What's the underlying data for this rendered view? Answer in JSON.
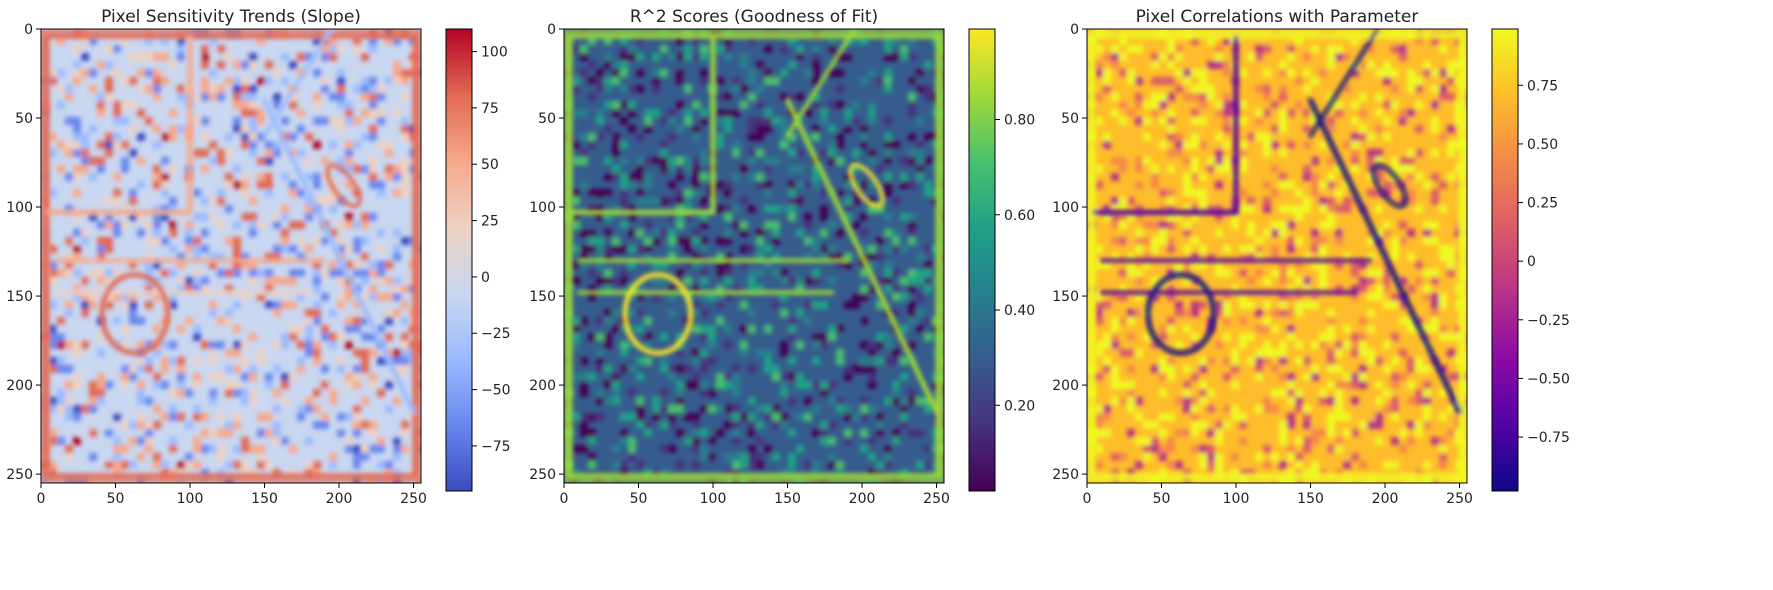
{
  "chart_data": [
    {
      "type": "heatmap",
      "title": "Pixel Sensitivity Trends (Slope)",
      "colormap": "coolwarm",
      "xlim": [
        0,
        255
      ],
      "ylim": [
        255,
        0
      ],
      "xticks": [
        0,
        50,
        100,
        150,
        200,
        250
      ],
      "yticks": [
        0,
        50,
        100,
        150,
        200,
        250
      ],
      "colorbar": {
        "min": -95,
        "max": 110,
        "ticks": [
          -75,
          -50,
          -25,
          0,
          25,
          50,
          75,
          100
        ]
      },
      "features": {
        "frame_value": 80,
        "background_value": 5,
        "rect_lines": [
          {
            "x": [
              5,
              100
            ],
            "y": 103,
            "v": 50
          },
          {
            "x": 100,
            "y": [
              5,
              103
            ],
            "v": 45
          }
        ],
        "ring": {
          "cx": 63,
          "cy": 160,
          "r": 22,
          "v": 70
        },
        "diagonal": {
          "from": [
            150,
            40
          ],
          "to": [
            250,
            215
          ],
          "v": -45
        },
        "hlines": [
          {
            "x": [
              10,
              190
            ],
            "y": 130,
            "v": 45
          },
          {
            "x": [
              10,
              180
            ],
            "y": 148,
            "v": 35
          }
        ]
      }
    },
    {
      "type": "heatmap",
      "title": "R^2 Scores (Goodness of Fit)",
      "colormap": "viridis",
      "xlim": [
        0,
        255
      ],
      "ylim": [
        255,
        0
      ],
      "xticks": [
        0,
        50,
        100,
        150,
        200,
        250
      ],
      "yticks": [
        0,
        50,
        100,
        150,
        200,
        250
      ],
      "colorbar": {
        "min": 0.02,
        "max": 0.99,
        "ticks": [
          0.2,
          0.4,
          0.6,
          0.8
        ]
      },
      "features": {
        "frame_value": 0.9,
        "background_value": 0.3,
        "rect_lines": [
          {
            "x": [
              5,
              100
            ],
            "y": 103,
            "v": 0.9
          },
          {
            "x": 100,
            "y": [
              5,
              103
            ],
            "v": 0.9
          }
        ],
        "ring": {
          "cx": 63,
          "cy": 160,
          "r": 22,
          "v": 0.95
        },
        "diagonal": {
          "from": [
            150,
            40
          ],
          "to": [
            250,
            215
          ],
          "v": 0.9
        },
        "hlines": [
          {
            "x": [
              10,
              190
            ],
            "y": 130,
            "v": 0.9
          },
          {
            "x": [
              10,
              180
            ],
            "y": 148,
            "v": 0.85
          }
        ]
      }
    },
    {
      "type": "heatmap",
      "title": "Pixel Correlations with Parameter",
      "colormap": "plasma",
      "xlim": [
        0,
        255
      ],
      "ylim": [
        255,
        0
      ],
      "xticks": [
        0,
        50,
        100,
        150,
        200,
        250
      ],
      "yticks": [
        0,
        50,
        100,
        150,
        200,
        250
      ],
      "colorbar": {
        "min": -0.98,
        "max": 0.99,
        "ticks": [
          -0.75,
          -0.5,
          -0.25,
          0.0,
          0.25,
          0.5,
          0.75
        ]
      },
      "features": {
        "frame_value": 0.9,
        "background_value": 0.7,
        "rect_lines": [
          {
            "x": [
              5,
              100
            ],
            "y": 103,
            "v": -0.8
          },
          {
            "x": 100,
            "y": [
              5,
              103
            ],
            "v": -0.8
          }
        ],
        "ring": {
          "cx": 63,
          "cy": 160,
          "r": 22,
          "v": -0.85
        },
        "diagonal": {
          "from": [
            150,
            40
          ],
          "to": [
            250,
            215
          ],
          "v": -0.85
        },
        "hlines": [
          {
            "x": [
              10,
              190
            ],
            "y": 130,
            "v": -0.7
          },
          {
            "x": [
              10,
              180
            ],
            "y": 148,
            "v": -0.75
          }
        ]
      }
    }
  ]
}
